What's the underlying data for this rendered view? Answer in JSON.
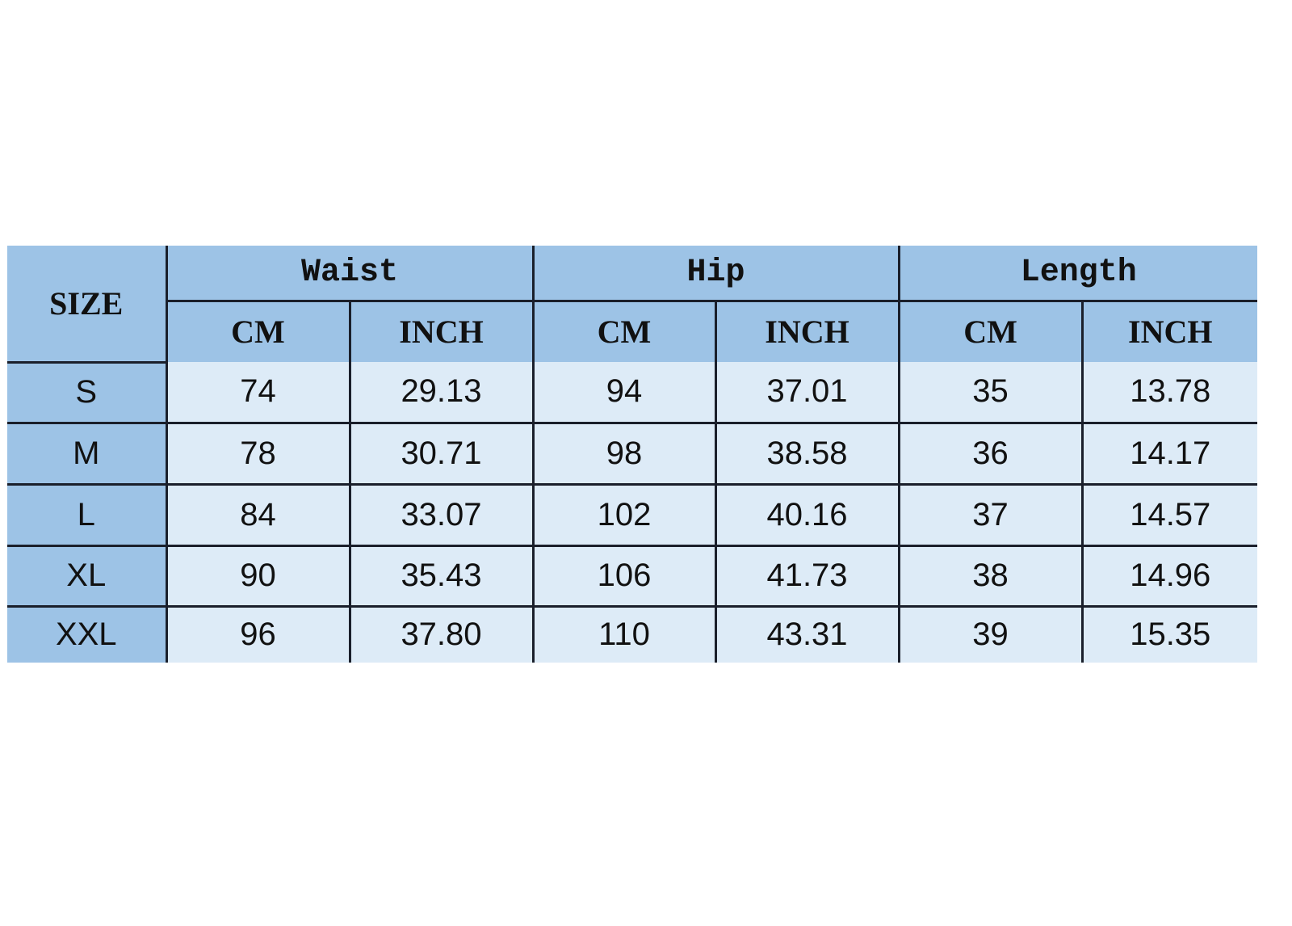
{
  "table": {
    "size_header": "SIZE",
    "groups": [
      "Waist",
      "Hip",
      "Length"
    ],
    "units": [
      "CM",
      "INCH",
      "CM",
      "INCH",
      "CM",
      "INCH"
    ],
    "rows": [
      {
        "size": "S",
        "values": [
          "74",
          "29.13",
          "94",
          "37.01",
          "35",
          "13.78"
        ]
      },
      {
        "size": "M",
        "values": [
          "78",
          "30.71",
          "98",
          "38.58",
          "36",
          "14.17"
        ]
      },
      {
        "size": "L",
        "values": [
          "84",
          "33.07",
          "102",
          "40.16",
          "37",
          "14.57"
        ]
      },
      {
        "size": "XL",
        "values": [
          "90",
          "35.43",
          "106",
          "41.73",
          "38",
          "14.96"
        ]
      },
      {
        "size": "XXL",
        "values": [
          "96",
          "37.80",
          "110",
          "43.31",
          "39",
          "15.35"
        ]
      }
    ],
    "colors": {
      "header": "#9dc3e6",
      "cell": "#ddebf7",
      "border": "#1a1f2b"
    }
  }
}
